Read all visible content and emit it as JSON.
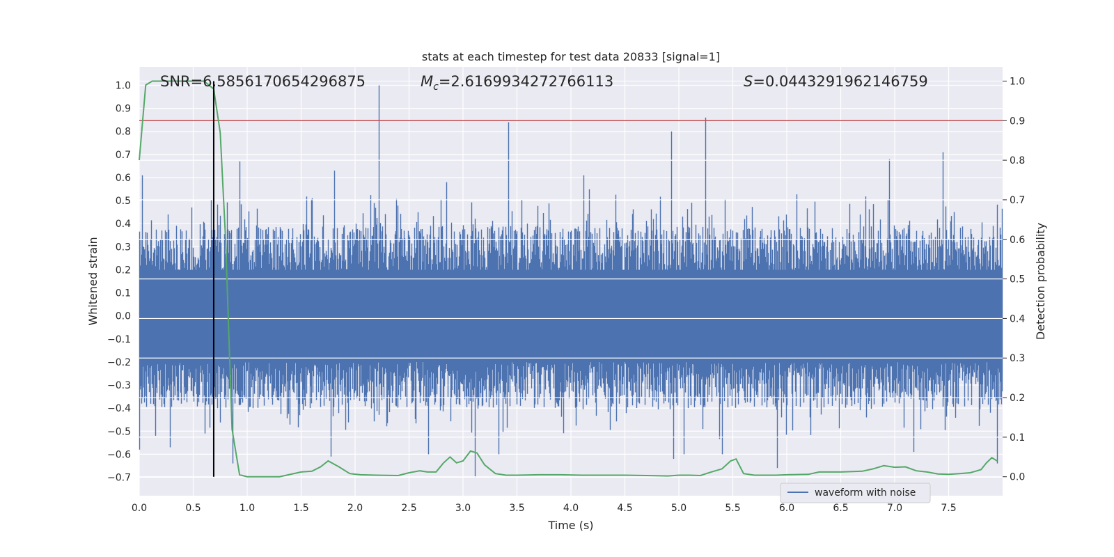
{
  "chart_data": {
    "type": "line",
    "title": "stats at each timestep for test data 20833 [signal=1]",
    "xlabel": "Time (s)",
    "ylabel_left": "Whitened strain",
    "ylabel_right": "Detection probability",
    "xlim": [
      0,
      8
    ],
    "ylim_left": [
      -0.78,
      1.08
    ],
    "ylim_right": [
      -0.048,
      1.036
    ],
    "x_ticks": [
      0.0,
      0.5,
      1.0,
      1.5,
      2.0,
      2.5,
      3.0,
      3.5,
      4.0,
      4.5,
      5.0,
      5.5,
      6.0,
      6.5,
      7.0,
      7.5
    ],
    "x_tick_labels": [
      "0.0",
      "0.5",
      "1.0",
      "1.5",
      "2.0",
      "2.5",
      "3.0",
      "3.5",
      "4.0",
      "4.5",
      "5.0",
      "5.5",
      "6.0",
      "6.5",
      "7.0",
      "7.5"
    ],
    "y_left_ticks": [
      1.0,
      0.9,
      0.8,
      0.7,
      0.6,
      0.5,
      0.4,
      0.3,
      0.2,
      0.1,
      0.0,
      -0.1,
      -0.2,
      -0.3,
      -0.4,
      -0.5,
      -0.6,
      -0.7
    ],
    "y_left_tick_labels": [
      "1.0",
      "0.9",
      "0.8",
      "0.7",
      "0.6",
      "0.5",
      "0.4",
      "0.3",
      "0.2",
      "0.1",
      "0.0",
      "−0.1",
      "−0.2",
      "−0.3",
      "−0.4",
      "−0.5",
      "−0.6",
      "−0.7"
    ],
    "y_right_ticks": [
      1.0,
      0.9,
      0.8,
      0.7,
      0.6,
      0.5,
      0.4,
      0.3,
      0.2,
      0.1,
      0.0
    ],
    "y_right_tick_labels": [
      "1.0",
      "0.9",
      "0.8",
      "0.7",
      "0.6",
      "0.5",
      "0.4",
      "0.3",
      "0.2",
      "0.1",
      "0.0"
    ],
    "annotations": {
      "snr": "SNR=6.5856170654296875",
      "mc_symbol": "M",
      "mc_sub": "c",
      "mc_value": "=2.6169934272766113",
      "s_symbol": "S",
      "s_value": "=0.0443291962146759"
    },
    "legend": {
      "label": "waveform with noise",
      "placement": "lower-right"
    },
    "grid": true,
    "threshold_line": {
      "axis": "right",
      "value": 0.9,
      "color": "#c44e52"
    },
    "marker_line": {
      "x": 0.69,
      "color": "#000000"
    },
    "series": [
      {
        "name": "waveform with noise",
        "axis": "left",
        "color": "#4c72b0",
        "kind": "noise-envelope",
        "core_band": [
          -0.2,
          0.2
        ],
        "spikes": [
          {
            "x": 0.03,
            "y": 0.61
          },
          {
            "x": 0.27,
            "y": 0.44
          },
          {
            "x": 0.49,
            "y": 0.47
          },
          {
            "x": 0.93,
            "y": 0.67
          },
          {
            "x": 1.6,
            "y": 0.51
          },
          {
            "x": 1.81,
            "y": 0.63
          },
          {
            "x": 2.22,
            "y": 1.0
          },
          {
            "x": 2.85,
            "y": 0.58
          },
          {
            "x": 3.42,
            "y": 0.84
          },
          {
            "x": 4.12,
            "y": 0.61
          },
          {
            "x": 4.93,
            "y": 0.8
          },
          {
            "x": 5.25,
            "y": 0.86
          },
          {
            "x": 6.95,
            "y": 0.68
          },
          {
            "x": 7.45,
            "y": 0.71
          },
          {
            "x": 7.95,
            "y": 0.48
          },
          {
            "x": 0.0,
            "y": -0.58
          },
          {
            "x": 0.15,
            "y": -0.52
          },
          {
            "x": 0.29,
            "y": -0.57
          },
          {
            "x": 0.87,
            "y": -0.64
          },
          {
            "x": 1.78,
            "y": -0.61
          },
          {
            "x": 2.68,
            "y": -0.6
          },
          {
            "x": 3.11,
            "y": -0.7
          },
          {
            "x": 3.33,
            "y": -0.6
          },
          {
            "x": 4.95,
            "y": -0.62
          },
          {
            "x": 5.05,
            "y": -0.6
          },
          {
            "x": 5.4,
            "y": -0.6
          },
          {
            "x": 5.91,
            "y": -0.66
          },
          {
            "x": 7.18,
            "y": -0.59
          },
          {
            "x": 7.95,
            "y": -0.64
          }
        ]
      },
      {
        "name": "",
        "axis": "right",
        "color": "#55a868",
        "x": [
          0.0,
          0.06,
          0.12,
          0.2,
          0.3,
          0.4,
          0.5,
          0.6,
          0.69,
          0.75,
          0.8,
          0.86,
          0.93,
          1.0,
          1.1,
          1.3,
          1.5,
          1.6,
          1.68,
          1.75,
          1.85,
          1.95,
          2.05,
          2.2,
          2.4,
          2.5,
          2.6,
          2.67,
          2.75,
          2.82,
          2.88,
          2.94,
          3.0,
          3.07,
          3.13,
          3.2,
          3.3,
          3.4,
          3.5,
          3.7,
          3.9,
          4.1,
          4.3,
          4.5,
          4.7,
          4.9,
          5.0,
          5.1,
          5.2,
          5.3,
          5.4,
          5.48,
          5.53,
          5.6,
          5.7,
          5.9,
          6.0,
          6.2,
          6.3,
          6.4,
          6.5,
          6.7,
          6.8,
          6.9,
          7.0,
          7.1,
          7.2,
          7.3,
          7.4,
          7.5,
          7.6,
          7.7,
          7.8,
          7.85,
          7.9,
          7.95
        ],
        "values": [
          0.8,
          0.99,
          1.0,
          1.0,
          1.0,
          1.0,
          1.0,
          1.0,
          0.98,
          0.87,
          0.6,
          0.12,
          0.005,
          0.0,
          0.0,
          0.0,
          0.012,
          0.014,
          0.025,
          0.04,
          0.025,
          0.008,
          0.005,
          0.004,
          0.003,
          0.01,
          0.015,
          0.012,
          0.012,
          0.035,
          0.05,
          0.035,
          0.04,
          0.065,
          0.06,
          0.03,
          0.008,
          0.004,
          0.004,
          0.005,
          0.005,
          0.004,
          0.004,
          0.004,
          0.003,
          0.002,
          0.004,
          0.004,
          0.003,
          0.012,
          0.02,
          0.04,
          0.045,
          0.008,
          0.004,
          0.004,
          0.005,
          0.006,
          0.012,
          0.012,
          0.012,
          0.014,
          0.02,
          0.028,
          0.024,
          0.025,
          0.015,
          0.012,
          0.007,
          0.006,
          0.008,
          0.01,
          0.018,
          0.035,
          0.048,
          0.04
        ]
      }
    ]
  }
}
